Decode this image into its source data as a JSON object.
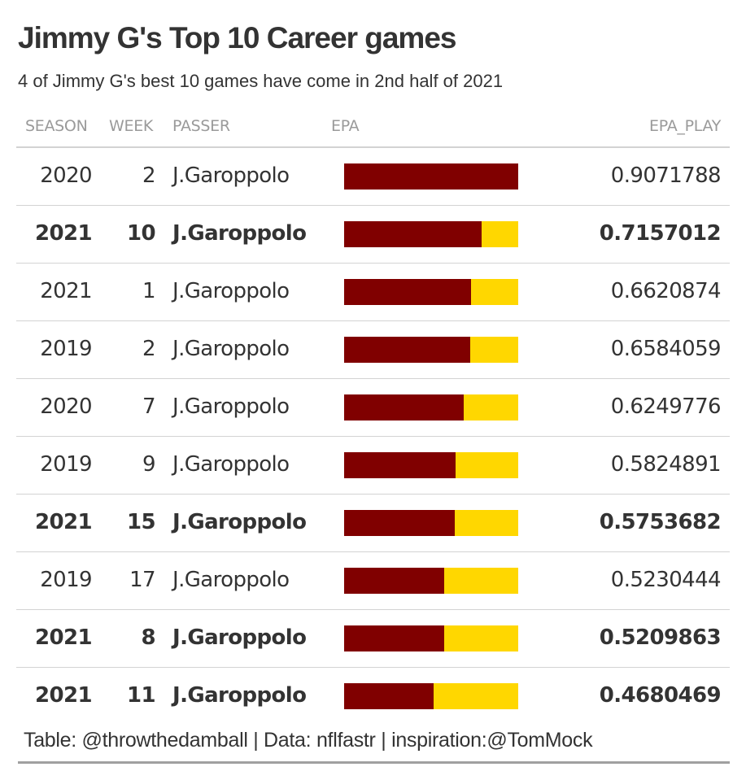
{
  "title": "Jimmy G's Top 10 Career games",
  "subtitle": "4 of Jimmy G's best 10 games have come in 2nd half of 2021",
  "columns": {
    "season": "SEASON",
    "week": "WEEK",
    "passer": "PASSER",
    "epa": "EPA",
    "epa_play": "EPA_PLAY"
  },
  "source": "Table: @throwthedamball | Data: nflfastr | inspiration:@TomMock",
  "colors": {
    "bar_fill": "#800000",
    "bar_track": "#FFD700",
    "text": "#333333",
    "header_text": "#9a9a9a",
    "divider": "#d3d3d3"
  },
  "chart_data": {
    "type": "table",
    "title": "Jimmy G's Top 10 Career games",
    "subtitle": "4 of Jimmy G's best 10 games have come in 2nd half of 2021",
    "epa_bar_max": 0.9071788,
    "rows": [
      {
        "season": "2020",
        "week": "2",
        "passer": "J.Garoppolo",
        "epa_play": 0.9071788,
        "epa_play_label": "0.9071788",
        "bold": false
      },
      {
        "season": "2021",
        "week": "10",
        "passer": "J.Garoppolo",
        "epa_play": 0.7157012,
        "epa_play_label": "0.7157012",
        "bold": true
      },
      {
        "season": "2021",
        "week": "1",
        "passer": "J.Garoppolo",
        "epa_play": 0.6620874,
        "epa_play_label": "0.6620874",
        "bold": false
      },
      {
        "season": "2019",
        "week": "2",
        "passer": "J.Garoppolo",
        "epa_play": 0.6584059,
        "epa_play_label": "0.6584059",
        "bold": false
      },
      {
        "season": "2020",
        "week": "7",
        "passer": "J.Garoppolo",
        "epa_play": 0.6249776,
        "epa_play_label": "0.6249776",
        "bold": false
      },
      {
        "season": "2019",
        "week": "9",
        "passer": "J.Garoppolo",
        "epa_play": 0.5824891,
        "epa_play_label": "0.5824891",
        "bold": false
      },
      {
        "season": "2021",
        "week": "15",
        "passer": "J.Garoppolo",
        "epa_play": 0.5753682,
        "epa_play_label": "0.5753682",
        "bold": true
      },
      {
        "season": "2019",
        "week": "17",
        "passer": "J.Garoppolo",
        "epa_play": 0.5230444,
        "epa_play_label": "0.5230444",
        "bold": false
      },
      {
        "season": "2021",
        "week": "8",
        "passer": "J.Garoppolo",
        "epa_play": 0.5209863,
        "epa_play_label": "0.5209863",
        "bold": true
      },
      {
        "season": "2021",
        "week": "11",
        "passer": "J.Garoppolo",
        "epa_play": 0.4680469,
        "epa_play_label": "0.4680469",
        "bold": true
      }
    ]
  }
}
